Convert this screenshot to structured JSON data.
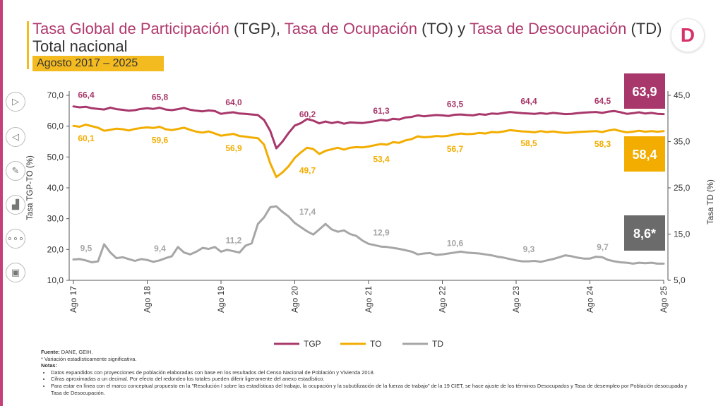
{
  "title": {
    "tgp": "Tasa Global de Participación",
    "tgp_abbr": "(TGP)",
    "to": "Tasa de Ocupación",
    "to_abbr": "(TO)",
    "connector": "y",
    "td": "Tasa de Desocupación",
    "td_abbr": "(TD)",
    "comma": ",",
    "subtitle": "Total nacional",
    "period": "Agosto 2017 – 2025"
  },
  "logo": {
    "letter": "D",
    "color": "#d6336c"
  },
  "colors": {
    "tgp": "#a8386b",
    "to": "#f2ad00",
    "td": "#a6a6a6",
    "badge_td": "#6b6b6b"
  },
  "chart_data": {
    "type": "line",
    "xlabel": "",
    "ylabel_left": "Tasa TGP-TO (%)",
    "ylabel_right": "Tasa TD (%)",
    "ylim_left": [
      10,
      70
    ],
    "ylim_right": [
      5,
      45
    ],
    "yticks_left": [
      "70,0",
      "60,0",
      "50,0",
      "40,0",
      "30,0",
      "20,0",
      "10,0"
    ],
    "yticks_left_values": [
      70,
      60,
      50,
      40,
      30,
      20,
      10
    ],
    "yticks_right": [
      "45,0",
      "35,0",
      "25,0",
      "15,0",
      "5,0"
    ],
    "yticks_right_values": [
      45,
      35,
      25,
      15,
      5
    ],
    "xticks": [
      "Ago 17",
      "Ago 18",
      "Ago 19",
      "Ago 20",
      "Ago 21",
      "Ago 22",
      "Ago 23",
      "Ago 24",
      "Ago 25"
    ],
    "xticks_index": [
      0,
      12,
      24,
      36,
      48,
      60,
      72,
      84,
      96
    ],
    "series": [
      {
        "name": "TGP",
        "axis": "left",
        "values": [
          66.4,
          66.1,
          66.3,
          65.8,
          65.6,
          65.4,
          66.0,
          65.5,
          65.3,
          65.0,
          65.2,
          65.6,
          65.8,
          65.6,
          66.0,
          65.4,
          65.2,
          65.5,
          65.9,
          65.3,
          65.0,
          64.8,
          65.1,
          64.9,
          64.0,
          64.3,
          64.5,
          64.1,
          64.0,
          63.8,
          63.6,
          62.0,
          58.5,
          52.8,
          55.0,
          57.8,
          60.2,
          61.0,
          62.3,
          61.8,
          60.9,
          61.5,
          61.0,
          61.4,
          60.8,
          61.2,
          61.1,
          61.0,
          61.3,
          61.6,
          62.0,
          61.8,
          62.4,
          62.2,
          62.8,
          63.0,
          63.5,
          63.2,
          63.4,
          63.6,
          63.5,
          63.3,
          63.7,
          63.8,
          63.6,
          63.5,
          63.9,
          63.7,
          64.1,
          64.0,
          64.3,
          64.6,
          64.4,
          64.2,
          64.1,
          64.0,
          64.2,
          64.0,
          64.3,
          64.1,
          63.9,
          64.0,
          64.2,
          64.4,
          64.5,
          64.6,
          64.3,
          64.7,
          64.9,
          64.5,
          64.0,
          64.2,
          64.5,
          64.1,
          64.3,
          64.0,
          63.9
        ],
        "labels": [
          {
            "index": 0,
            "text": "66,4",
            "pos": "above"
          },
          {
            "index": 12,
            "text": "65,8",
            "pos": "above"
          },
          {
            "index": 24,
            "text": "64,0",
            "pos": "above"
          },
          {
            "index": 36,
            "text": "60,2",
            "pos": "above"
          },
          {
            "index": 48,
            "text": "61,3",
            "pos": "above"
          },
          {
            "index": 60,
            "text": "63,5",
            "pos": "above"
          },
          {
            "index": 72,
            "text": "64,4",
            "pos": "above"
          },
          {
            "index": 84,
            "text": "64,5",
            "pos": "above"
          }
        ],
        "end_badge": "63,9"
      },
      {
        "name": "TO",
        "axis": "left",
        "values": [
          60.1,
          59.8,
          60.5,
          60.0,
          59.5,
          58.5,
          58.8,
          59.2,
          59.0,
          58.6,
          59.1,
          59.4,
          59.6,
          59.4,
          59.8,
          59.0,
          58.7,
          59.1,
          59.5,
          58.8,
          58.2,
          57.9,
          58.3,
          57.6,
          56.9,
          57.2,
          57.5,
          56.8,
          56.6,
          56.3,
          56.1,
          54.0,
          48.0,
          43.5,
          45.0,
          47.0,
          49.7,
          51.5,
          53.0,
          52.6,
          51.0,
          52.0,
          52.5,
          53.0,
          52.4,
          53.0,
          53.2,
          53.1,
          53.4,
          53.8,
          54.2,
          54.0,
          54.8,
          54.6,
          55.4,
          55.8,
          56.7,
          56.4,
          56.5,
          56.8,
          56.7,
          56.9,
          57.3,
          57.6,
          57.4,
          57.5,
          57.8,
          57.6,
          58.1,
          58.0,
          58.3,
          58.7,
          58.5,
          58.3,
          58.2,
          58.0,
          58.4,
          58.1,
          58.3,
          58.0,
          57.8,
          57.9,
          58.1,
          58.2,
          58.3,
          58.4,
          58.1,
          58.6,
          58.9,
          58.4,
          58.0,
          58.2,
          58.5,
          58.2,
          58.4,
          58.2,
          58.4
        ],
        "labels": [
          {
            "index": 0,
            "text": "60,1",
            "pos": "below"
          },
          {
            "index": 12,
            "text": "59,6",
            "pos": "below"
          },
          {
            "index": 24,
            "text": "56,9",
            "pos": "below"
          },
          {
            "index": 36,
            "text": "49,7",
            "pos": "below"
          },
          {
            "index": 48,
            "text": "53,4",
            "pos": "below"
          },
          {
            "index": 60,
            "text": "56,7",
            "pos": "below"
          },
          {
            "index": 72,
            "text": "58,5",
            "pos": "below"
          },
          {
            "index": 84,
            "text": "58,3",
            "pos": "below"
          }
        ],
        "end_badge": "58,4"
      },
      {
        "name": "TD",
        "axis": "right",
        "values": [
          9.5,
          9.6,
          9.3,
          8.9,
          9.1,
          12.8,
          11.0,
          9.8,
          10.0,
          9.6,
          9.2,
          9.6,
          9.4,
          9.0,
          9.3,
          9.8,
          10.2,
          12.2,
          11.0,
          10.6,
          11.2,
          12.0,
          11.8,
          12.2,
          11.2,
          11.6,
          11.3,
          11.0,
          12.5,
          13.0,
          17.2,
          18.6,
          20.8,
          21.0,
          19.8,
          18.8,
          17.4,
          16.5,
          15.6,
          14.9,
          16.0,
          17.2,
          16.0,
          15.5,
          15.8,
          15.0,
          14.6,
          13.6,
          12.9,
          12.6,
          12.3,
          12.2,
          12.0,
          11.8,
          11.5,
          11.2,
          10.6,
          10.8,
          10.9,
          10.5,
          10.6,
          10.8,
          11.0,
          11.2,
          11.0,
          10.9,
          10.8,
          10.6,
          10.4,
          10.1,
          9.9,
          9.6,
          9.3,
          9.1,
          9.1,
          9.2,
          9.0,
          9.3,
          9.6,
          10.0,
          10.4,
          10.2,
          9.9,
          9.7,
          9.7,
          10.1,
          10.0,
          9.4,
          9.1,
          8.9,
          8.8,
          8.6,
          8.8,
          8.7,
          8.8,
          8.6,
          8.6
        ],
        "labels": [
          {
            "index": 0,
            "text": "9,5",
            "pos": "above"
          },
          {
            "index": 12,
            "text": "9,4",
            "pos": "above"
          },
          {
            "index": 24,
            "text": "11,2",
            "pos": "above"
          },
          {
            "index": 36,
            "text": "17,4",
            "pos": "above"
          },
          {
            "index": 48,
            "text": "12,9",
            "pos": "above"
          },
          {
            "index": 60,
            "text": "10,6",
            "pos": "above"
          },
          {
            "index": 72,
            "text": "9,3",
            "pos": "above"
          },
          {
            "index": 84,
            "text": "9,7",
            "pos": "above"
          }
        ],
        "end_badge": "8,6*"
      }
    ],
    "legend": [
      "TGP",
      "TO",
      "TD"
    ],
    "legend_position": "bottom-center"
  },
  "footnotes": {
    "fuente_label": "Fuente:",
    "fuente_text": " DANE, GEIH.",
    "asterisk": "* Variación estadísticamente significativa.",
    "notas_label": "Notas:",
    "items": [
      "Datos expandidos con proyecciones de población elaboradas con base en los resultados del Censo Nacional de Población y Vivienda 2018.",
      "Cifras aproximadas a un decimal. Por efecto del redondeo los totales pueden diferir ligeramente del anexo estadístico.",
      "Para estar en línea con el marco conceptual propuesto en la \"Resolución I sobre las estadísticas del trabajo, la ocupación y la subutilización de la fuerza de trabajo\" de la 19 CIET, se hace ajuste de los términos Desocupados y Tasa de desempleo por Población desocupada y Tasa de Desocupación."
    ]
  },
  "controls": {
    "items": [
      "play-icon",
      "previous-icon",
      "pen-icon",
      "chart-icon",
      "more-icon",
      "presentation-icon"
    ]
  }
}
